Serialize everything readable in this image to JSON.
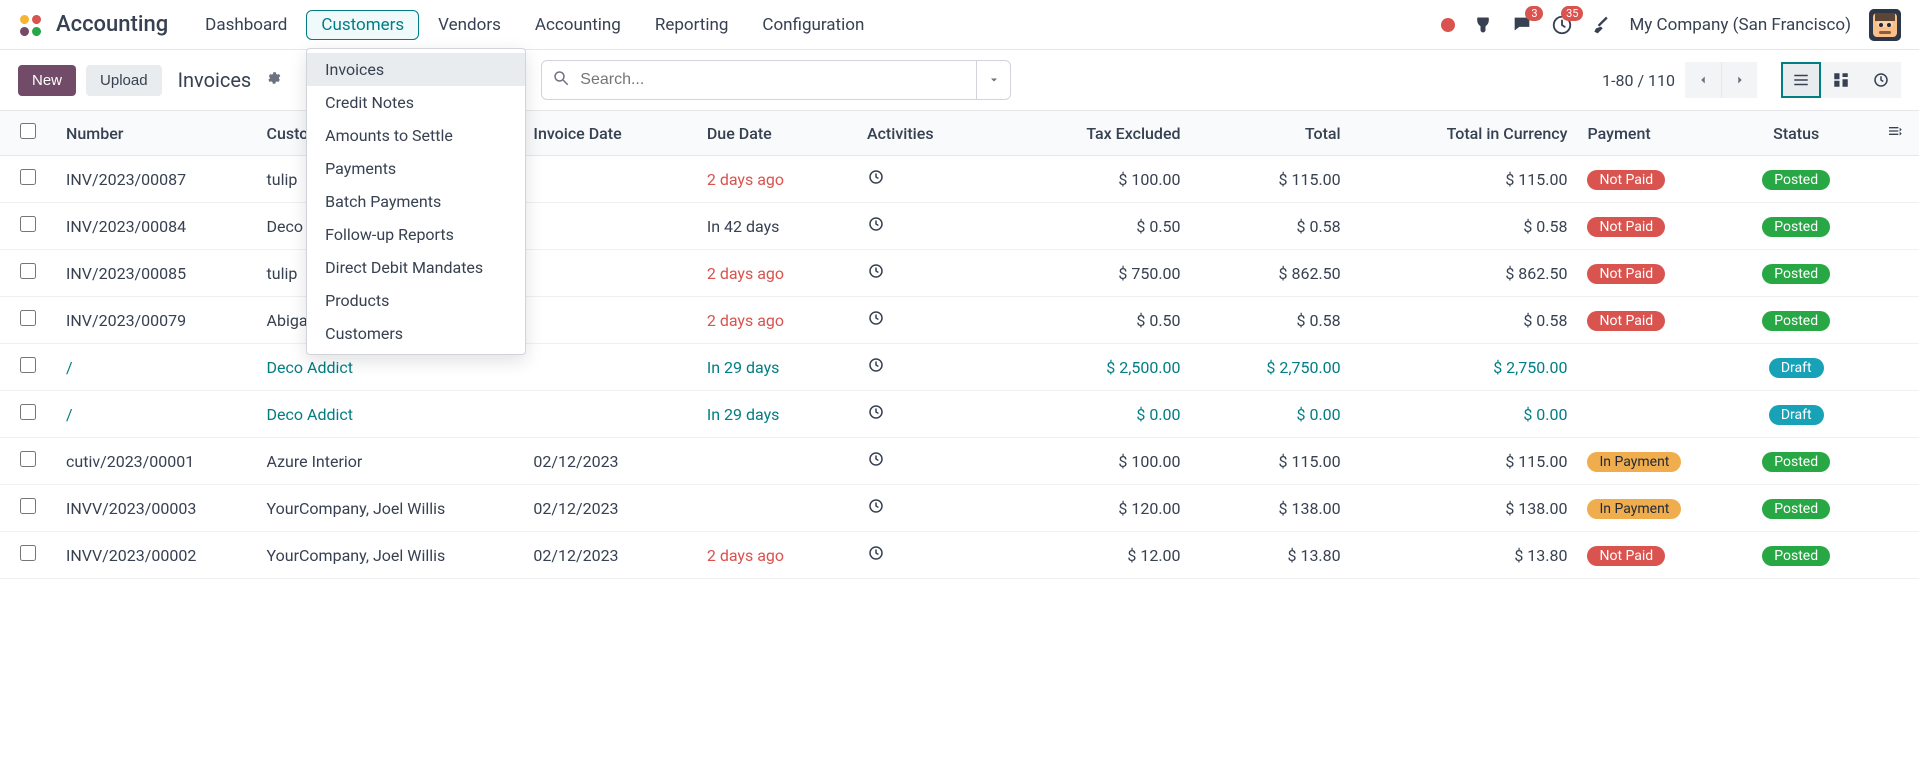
{
  "nav": {
    "app": "Accounting",
    "items": [
      "Dashboard",
      "Customers",
      "Vendors",
      "Accounting",
      "Reporting",
      "Configuration"
    ],
    "active_index": 1,
    "company": "My Company (San Francisco)",
    "msg_badge": "3",
    "act_badge": "35"
  },
  "dropdown": {
    "anchor_index": 1,
    "items": [
      "Invoices",
      "Credit Notes",
      "Amounts to Settle",
      "Payments",
      "Batch Payments",
      "Follow-up Reports",
      "Direct Debit Mandates",
      "Products",
      "Customers"
    ],
    "selected_index": 0
  },
  "cp": {
    "new": "New",
    "upload": "Upload",
    "breadcrumb": "Invoices",
    "search_placeholder": "Search...",
    "pager": "1-80 / 110"
  },
  "cols": {
    "number": "Number",
    "customer": "Customer",
    "invoice_date": "Invoice Date",
    "due_date": "Due Date",
    "activities": "Activities",
    "tax_excl": "Tax Excluded",
    "total": "Total",
    "tic": "Total in Currency",
    "payment": "Payment",
    "status": "Status"
  },
  "rows": [
    {
      "num": "INV/2023/00087",
      "cust": "tulip",
      "inv": "",
      "due": "2 days ago",
      "due_style": "red",
      "act": true,
      "texl": "$ 100.00",
      "tot": "$ 115.00",
      "tic": "$ 115.00",
      "pay": "Not Paid",
      "pay_c": "notpaid",
      "stat": "Posted",
      "stat_c": "posted",
      "teal": false
    },
    {
      "num": "INV/2023/00084",
      "cust": "Deco Addict",
      "inv": "",
      "due": "In 42 days",
      "due_style": "",
      "act": true,
      "texl": "$ 0.50",
      "tot": "$ 0.58",
      "tic": "$ 0.58",
      "pay": "Not Paid",
      "pay_c": "notpaid",
      "stat": "Posted",
      "stat_c": "posted",
      "teal": false
    },
    {
      "num": "INV/2023/00085",
      "cust": "tulip",
      "inv": "",
      "due": "2 days ago",
      "due_style": "red",
      "act": true,
      "texl": "$ 750.00",
      "tot": "$ 862.50",
      "tic": "$ 862.50",
      "pay": "Not Paid",
      "pay_c": "notpaid",
      "stat": "Posted",
      "stat_c": "posted",
      "teal": false
    },
    {
      "num": "INV/2023/00079",
      "cust": "Abigail Peterson",
      "inv": "",
      "due": "2 days ago",
      "due_style": "red",
      "act": true,
      "texl": "$ 0.50",
      "tot": "$ 0.58",
      "tic": "$ 0.58",
      "pay": "Not Paid",
      "pay_c": "notpaid",
      "stat": "Posted",
      "stat_c": "posted",
      "teal": false
    },
    {
      "num": "/",
      "cust": "Deco Addict",
      "inv": "",
      "due": "In 29 days",
      "due_style": "teal",
      "act": true,
      "texl": "$ 2,500.00",
      "tot": "$ 2,750.00",
      "tic": "$ 2,750.00",
      "pay": "",
      "pay_c": "",
      "stat": "Draft",
      "stat_c": "draft",
      "teal": true
    },
    {
      "num": "/",
      "cust": "Deco Addict",
      "inv": "",
      "due": "In 29 days",
      "due_style": "teal",
      "act": true,
      "texl": "$ 0.00",
      "tot": "$ 0.00",
      "tic": "$ 0.00",
      "pay": "",
      "pay_c": "",
      "stat": "Draft",
      "stat_c": "draft",
      "teal": true
    },
    {
      "num": "cutiv/2023/00001",
      "cust": "Azure Interior",
      "inv": "02/12/2023",
      "due": "",
      "due_style": "",
      "act": true,
      "texl": "$ 100.00",
      "tot": "$ 115.00",
      "tic": "$ 115.00",
      "pay": "In Payment",
      "pay_c": "inpay",
      "stat": "Posted",
      "stat_c": "posted",
      "teal": false
    },
    {
      "num": "INVV/2023/00003",
      "cust": "YourCompany, Joel Willis",
      "inv": "02/12/2023",
      "due": "",
      "due_style": "",
      "act": true,
      "texl": "$ 120.00",
      "tot": "$ 138.00",
      "tic": "$ 138.00",
      "pay": "In Payment",
      "pay_c": "inpay",
      "stat": "Posted",
      "stat_c": "posted",
      "teal": false
    },
    {
      "num": "INVV/2023/00002",
      "cust": "YourCompany, Joel Willis",
      "inv": "02/12/2023",
      "due": "2 days ago",
      "due_style": "red",
      "act": true,
      "texl": "$ 12.00",
      "tot": "$ 13.80",
      "tic": "$ 13.80",
      "pay": "Not Paid",
      "pay_c": "notpaid",
      "stat": "Posted",
      "stat_c": "posted",
      "teal": false
    }
  ]
}
